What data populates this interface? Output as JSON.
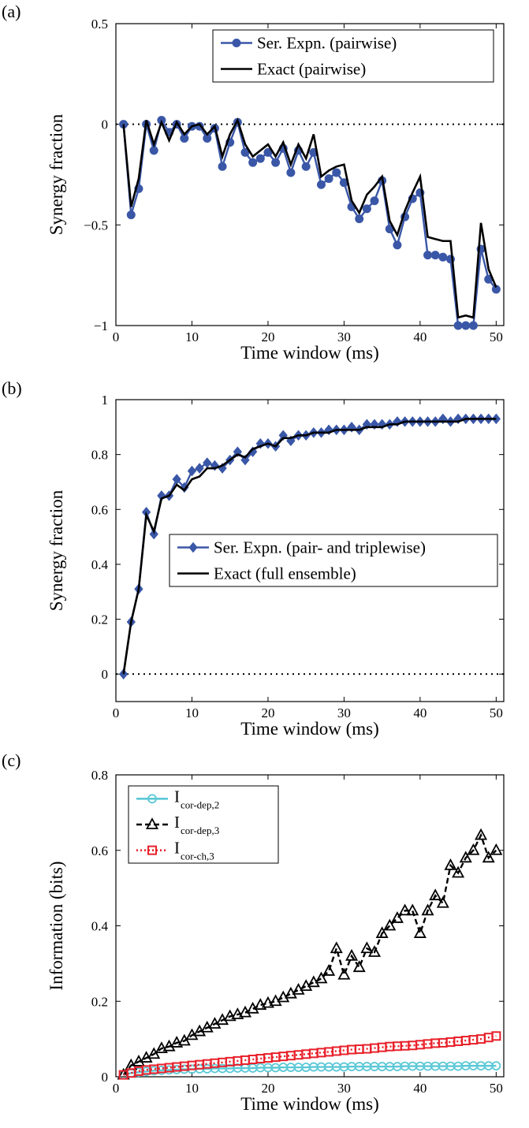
{
  "panels": [
    {
      "id": "a",
      "tag": "(a)"
    },
    {
      "id": "b",
      "tag": "(b)"
    },
    {
      "id": "c",
      "tag": "(c)"
    }
  ],
  "chart_data": [
    {
      "type": "line",
      "panel_tag": "(a)",
      "xlabel": "Time window (ms)",
      "ylabel": "Synergy fraction",
      "xlim": [
        0,
        51
      ],
      "ylim": [
        -1,
        0.5
      ],
      "xticks": [
        0,
        10,
        20,
        30,
        40,
        50
      ],
      "yticks": [
        -1,
        -0.5,
        0,
        0.5
      ],
      "ytick_labels": [
        "−1",
        "−0.5",
        "0",
        "0.5"
      ],
      "grid": false,
      "legend_position": "top-right",
      "reference_line": {
        "y": 0,
        "style": "dotted"
      },
      "x": [
        1,
        2,
        3,
        4,
        5,
        6,
        7,
        8,
        9,
        10,
        11,
        12,
        13,
        14,
        15,
        16,
        17,
        18,
        19,
        20,
        21,
        22,
        23,
        24,
        25,
        26,
        27,
        28,
        29,
        30,
        31,
        32,
        33,
        34,
        35,
        36,
        37,
        38,
        39,
        40,
        41,
        42,
        43,
        44,
        45,
        46,
        47,
        48,
        49,
        50
      ],
      "series": [
        {
          "name": "Ser. Expn. (pairwise)",
          "color": "#3a57a7",
          "marker": "circle",
          "values": [
            0,
            -0.45,
            -0.32,
            0,
            -0.13,
            0.02,
            -0.04,
            0,
            -0.07,
            -0.01,
            -0.01,
            -0.07,
            -0.02,
            -0.21,
            -0.09,
            0.01,
            -0.14,
            -0.19,
            -0.17,
            -0.14,
            -0.19,
            -0.12,
            -0.24,
            -0.13,
            -0.21,
            -0.14,
            -0.3,
            -0.27,
            -0.24,
            -0.29,
            -0.41,
            -0.47,
            -0.42,
            -0.38,
            -0.28,
            -0.52,
            -0.6,
            -0.46,
            -0.37,
            -0.34,
            -0.65,
            -0.65,
            -0.66,
            -0.67,
            -1.0,
            -1.0,
            -1.0,
            -0.62,
            -0.77,
            -0.82
          ]
        },
        {
          "name": "Exact (pairwise)",
          "color": "#000000",
          "marker": "none",
          "values": [
            0,
            -0.41,
            -0.27,
            0.02,
            -0.1,
            0.01,
            -0.08,
            0.01,
            -0.05,
            -0.01,
            0,
            -0.05,
            -0.01,
            -0.16,
            -0.05,
            0.02,
            -0.1,
            -0.16,
            -0.13,
            -0.1,
            -0.16,
            -0.09,
            -0.2,
            -0.1,
            -0.17,
            -0.05,
            -0.26,
            -0.23,
            -0.21,
            -0.2,
            -0.38,
            -0.44,
            -0.35,
            -0.31,
            -0.26,
            -0.48,
            -0.55,
            -0.43,
            -0.34,
            -0.26,
            -0.56,
            -0.57,
            -0.58,
            -0.58,
            -0.96,
            -0.95,
            -0.96,
            -0.49,
            -0.72,
            -0.81
          ]
        }
      ]
    },
    {
      "type": "line",
      "panel_tag": "(b)",
      "xlabel": "Time window (ms)",
      "ylabel": "Synergy fraction",
      "xlim": [
        0,
        51
      ],
      "ylim": [
        -0.1,
        1
      ],
      "xticks": [
        0,
        10,
        20,
        30,
        40,
        50
      ],
      "yticks": [
        0,
        0.2,
        0.4,
        0.6,
        0.8,
        1
      ],
      "ytick_labels": [
        "0",
        "0.2",
        "0.4",
        "0.6",
        "0.8",
        "1"
      ],
      "grid": false,
      "legend_position": "center-right",
      "reference_line": {
        "y": 0,
        "style": "dotted"
      },
      "x": [
        1,
        2,
        3,
        4,
        5,
        6,
        7,
        8,
        9,
        10,
        11,
        12,
        13,
        14,
        15,
        16,
        17,
        18,
        19,
        20,
        21,
        22,
        23,
        24,
        25,
        26,
        27,
        28,
        29,
        30,
        31,
        32,
        33,
        34,
        35,
        36,
        37,
        38,
        39,
        40,
        41,
        42,
        43,
        44,
        45,
        46,
        47,
        48,
        49,
        50
      ],
      "series": [
        {
          "name": "Ser. Expn. (pair- and triplewise)",
          "color": "#3a57a7",
          "marker": "diamond",
          "values": [
            0,
            0.19,
            0.31,
            0.59,
            0.51,
            0.65,
            0.65,
            0.71,
            0.68,
            0.74,
            0.75,
            0.77,
            0.76,
            0.75,
            0.78,
            0.81,
            0.78,
            0.81,
            0.84,
            0.84,
            0.83,
            0.87,
            0.85,
            0.87,
            0.87,
            0.88,
            0.88,
            0.89,
            0.89,
            0.89,
            0.9,
            0.89,
            0.91,
            0.91,
            0.91,
            0.91,
            0.92,
            0.92,
            0.92,
            0.92,
            0.92,
            0.92,
            0.93,
            0.92,
            0.93,
            0.93,
            0.93,
            0.93,
            0.93,
            0.93
          ]
        },
        {
          "name": "Exact (full ensemble)",
          "color": "#000000",
          "marker": "none",
          "values": [
            0,
            0.19,
            0.31,
            0.58,
            0.52,
            0.64,
            0.65,
            0.69,
            0.67,
            0.71,
            0.72,
            0.75,
            0.75,
            0.76,
            0.78,
            0.8,
            0.79,
            0.82,
            0.83,
            0.84,
            0.83,
            0.86,
            0.86,
            0.87,
            0.87,
            0.88,
            0.88,
            0.88,
            0.89,
            0.89,
            0.89,
            0.89,
            0.9,
            0.9,
            0.9,
            0.91,
            0.91,
            0.92,
            0.92,
            0.92,
            0.92,
            0.92,
            0.92,
            0.92,
            0.92,
            0.93,
            0.93,
            0.93,
            0.93,
            0.93
          ]
        }
      ]
    },
    {
      "type": "line",
      "panel_tag": "(c)",
      "xlabel": "Time window (ms)",
      "ylabel": "Information (bits)",
      "xlim": [
        0,
        51
      ],
      "ylim": [
        0,
        0.8
      ],
      "xticks": [
        0,
        10,
        20,
        30,
        40,
        50
      ],
      "yticks": [
        0,
        0.2,
        0.4,
        0.6,
        0.8
      ],
      "ytick_labels": [
        "0",
        "0.2",
        "0.4",
        "0.6",
        "0.8"
      ],
      "grid": false,
      "legend_position": "top-left",
      "x": [
        1,
        2,
        3,
        4,
        5,
        6,
        7,
        8,
        9,
        10,
        11,
        12,
        13,
        14,
        15,
        16,
        17,
        18,
        19,
        20,
        21,
        22,
        23,
        24,
        25,
        26,
        27,
        28,
        29,
        30,
        31,
        32,
        33,
        34,
        35,
        36,
        37,
        38,
        39,
        40,
        41,
        42,
        43,
        44,
        45,
        46,
        47,
        48,
        49,
        50
      ],
      "series": [
        {
          "name_main": "I",
          "name_sub": "cor-dep,2",
          "color": "#5bc8d6",
          "marker": "circle",
          "dash": "solid",
          "values": [
            0.005,
            0.01,
            0.012,
            0.014,
            0.016,
            0.017,
            0.018,
            0.019,
            0.02,
            0.02,
            0.021,
            0.021,
            0.022,
            0.022,
            0.022,
            0.023,
            0.023,
            0.023,
            0.024,
            0.024,
            0.024,
            0.025,
            0.025,
            0.025,
            0.025,
            0.026,
            0.026,
            0.026,
            0.026,
            0.026,
            0.027,
            0.027,
            0.027,
            0.027,
            0.027,
            0.027,
            0.027,
            0.028,
            0.028,
            0.028,
            0.028,
            0.028,
            0.028,
            0.028,
            0.028,
            0.029,
            0.029,
            0.029,
            0.029,
            0.029
          ]
        },
        {
          "name_main": "I",
          "name_sub": "cor-dep,3",
          "color": "#000000",
          "marker": "triangle",
          "dash": "dashed",
          "values": [
            0.005,
            0.03,
            0.04,
            0.05,
            0.06,
            0.075,
            0.08,
            0.09,
            0.095,
            0.11,
            0.12,
            0.13,
            0.14,
            0.15,
            0.16,
            0.165,
            0.17,
            0.18,
            0.19,
            0.195,
            0.2,
            0.21,
            0.22,
            0.23,
            0.24,
            0.25,
            0.26,
            0.28,
            0.34,
            0.27,
            0.32,
            0.29,
            0.34,
            0.33,
            0.38,
            0.4,
            0.42,
            0.44,
            0.44,
            0.38,
            0.44,
            0.48,
            0.46,
            0.56,
            0.54,
            0.58,
            0.6,
            0.64,
            0.58,
            0.6
          ]
        },
        {
          "name_main": "I",
          "name_sub": "cor-ch,3",
          "color": "#e8212b",
          "marker": "square",
          "dash": "dotted",
          "values": [
            0.005,
            0.01,
            0.015,
            0.018,
            0.02,
            0.022,
            0.024,
            0.026,
            0.028,
            0.03,
            0.032,
            0.034,
            0.036,
            0.038,
            0.04,
            0.042,
            0.044,
            0.046,
            0.048,
            0.05,
            0.052,
            0.054,
            0.056,
            0.058,
            0.06,
            0.062,
            0.064,
            0.066,
            0.068,
            0.07,
            0.072,
            0.073,
            0.074,
            0.076,
            0.078,
            0.08,
            0.081,
            0.082,
            0.083,
            0.085,
            0.087,
            0.089,
            0.09,
            0.092,
            0.094,
            0.096,
            0.098,
            0.1,
            0.104,
            0.108
          ]
        }
      ]
    }
  ]
}
